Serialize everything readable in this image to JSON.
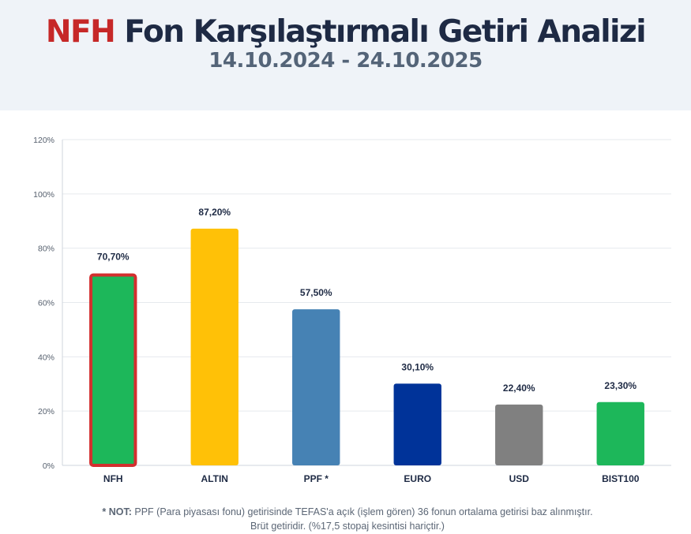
{
  "header": {
    "brand": "NFH",
    "title_rest": " Fon Karşılaştırmalı Getiri Analizi",
    "period": "14.10.2024 - 24.10.2025"
  },
  "colors": {
    "brand_red": "#c62828",
    "title_dark": "#1e2a44",
    "header_bg": "#eff3f8"
  },
  "chart_data": {
    "type": "bar",
    "categories": [
      "NFH",
      "ALTIN",
      "PPF *",
      "EURO",
      "USD",
      "BIST100"
    ],
    "values": [
      70.7,
      87.2,
      57.5,
      30.1,
      22.4,
      23.3
    ],
    "value_labels": [
      "70,70%",
      "87,20%",
      "57,50%",
      "30,10%",
      "22,40%",
      "23,30%"
    ],
    "bar_colors": [
      "#1db75a",
      "#ffc107",
      "#4682b4",
      "#003399",
      "#808080",
      "#1db75a"
    ],
    "highlight": {
      "category": "NFH",
      "border_color": "#d32f2f"
    },
    "ylim": [
      0,
      120
    ],
    "yticks": [
      0,
      20,
      40,
      60,
      80,
      100,
      120
    ],
    "ytick_labels": [
      "0%",
      "20%",
      "40%",
      "60%",
      "80%",
      "100%",
      "120%"
    ],
    "grid": true,
    "legend": "none",
    "xlabel": "",
    "ylabel": ""
  },
  "note": {
    "lead": "* NOT:",
    "text": " PPF (Para piyasası fonu) getirisinde TEFAS'a açık (işlem gören) 36 fonun ortalama getirisi baz alınmıştır. Brüt getiridir. (%17,5 stopaj kesintisi hariçtir.)"
  }
}
